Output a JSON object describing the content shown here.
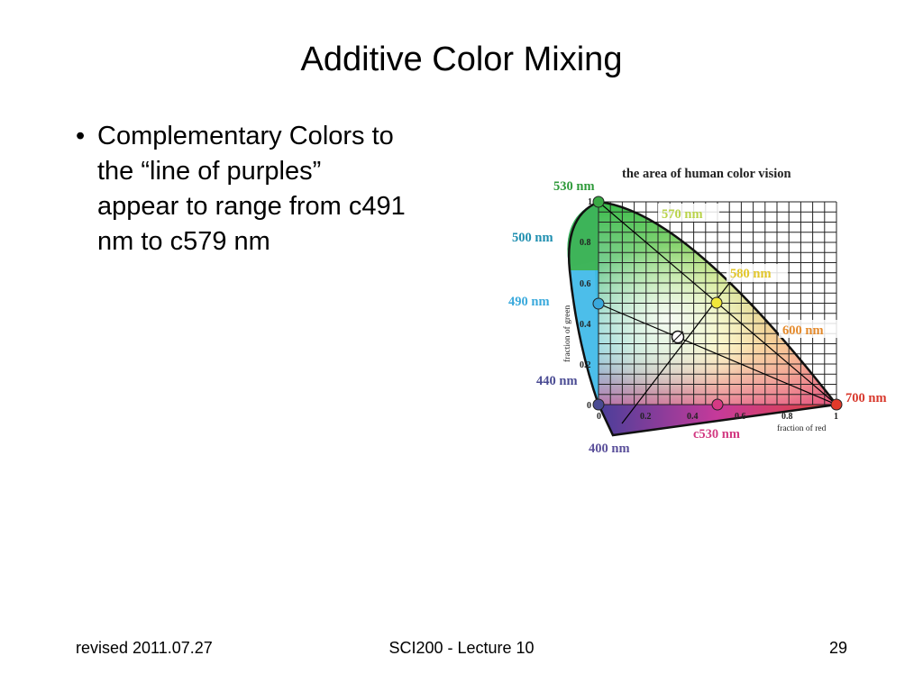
{
  "slide": {
    "title": "Additive Color Mixing",
    "bullet_lines": [
      "Complementary Colors to",
      "the “line of purples”",
      "appear to range from c491",
      "nm to c579 nm"
    ],
    "bullet_symbol": "•"
  },
  "figure": {
    "heading": "the area of human color vision",
    "y_axis_label": "fraction of green",
    "x_axis_label": "fraction of red",
    "x_ticks": [
      "0",
      "0.2",
      "0.4",
      "0.6",
      "0.8",
      "1"
    ],
    "y_ticks": [
      "0",
      "0.2",
      "0.4",
      "0.6",
      "0.8",
      "1"
    ],
    "wavelength_labels": {
      "nm530": "530 nm",
      "nm570": "570 nm",
      "nm500": "500 nm",
      "nm580": "580 nm",
      "nm490": "490 nm",
      "nm600": "600 nm",
      "nm440": "440 nm",
      "nm700": "700 nm",
      "nm400": "400 nm",
      "c530": "c530 nm"
    },
    "label_colors": {
      "nm530": "#2e9a3a",
      "nm570": "#b9d34a",
      "nm500": "#1f8fb0",
      "nm580": "#e2c62a",
      "nm490": "#39a9dc",
      "nm600": "#e48a2c",
      "nm440": "#4a4b93",
      "nm700": "#d8382c",
      "nm400": "#5a4f9a",
      "c530": "#d23a82"
    }
  },
  "footer": {
    "left": "revised 2011.07.27",
    "center": "SCI200 - Lecture 10",
    "right": "29"
  }
}
